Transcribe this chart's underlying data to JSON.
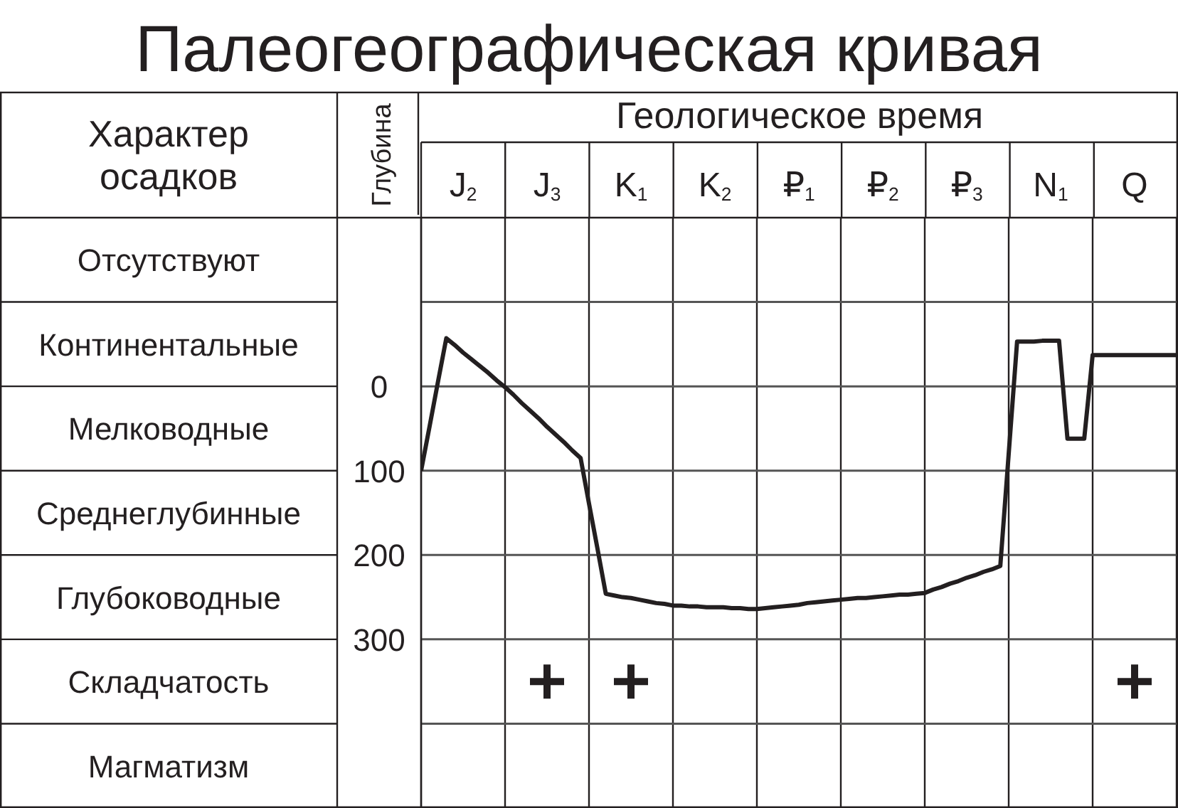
{
  "chart_data": {
    "type": "line",
    "title": "Палеогеографическая кривая",
    "xlabel": "Геологическое время",
    "ylabel": "Глубина",
    "annotations": [
      "Характер осадков",
      "Отсутствуют",
      "Континентальные",
      "Мелководные",
      "Среднеглубинные",
      "Глубоководные",
      "Складчатость",
      "Магматизм"
    ],
    "categories": [
      null,
      null,
      null,
      null,
      null,
      "J$_{2}$",
      null,
      null,
      null,
      null,
      null,
      null,
      null,
      null,
      null,
      "J$_{3}$",
      null,
      null,
      null,
      null,
      null,
      null,
      null,
      null,
      null,
      "K$_{1}$",
      null,
      null,
      null,
      null,
      null,
      null,
      null,
      null,
      null,
      "K$_{2}$",
      null,
      null,
      null,
      null,
      null,
      null,
      null,
      null,
      null,
      "₽$_{1}$",
      null,
      null,
      null,
      null,
      null,
      null,
      null,
      null,
      null,
      "₽$_{2}$",
      null,
      null,
      null,
      null,
      null,
      null,
      null,
      null,
      null,
      "₽$_{3}$",
      null,
      null,
      null,
      null,
      null,
      null,
      null,
      null,
      null,
      "N$_{1}$",
      null,
      null,
      null,
      null,
      null,
      null,
      null,
      null,
      null,
      "Q",
      null,
      null,
      null,
      null,
      null
    ],
    "series": [
      {
        "color": "#231f20",
        "marker": "none",
        "line_style": "solid",
        "values": [
          100,
          48,
          -5,
          -57,
          -49,
          -40,
          -32,
          -24,
          -16,
          -7,
          1,
          10,
          20,
          29,
          38,
          48,
          57,
          66,
          76,
          85,
          139,
          192,
          246,
          248,
          250,
          251,
          253,
          255,
          257,
          258,
          260,
          260,
          261,
          261,
          262,
          262,
          262,
          263,
          263,
          264,
          264,
          263,
          262,
          261,
          260,
          259,
          257,
          256,
          255,
          254,
          253,
          252,
          251,
          251,
          250,
          249,
          248,
          247,
          247,
          246,
          245,
          241,
          238,
          234,
          231,
          227,
          224,
          220,
          217,
          213,
          80,
          -53,
          -53,
          -53,
          -54,
          -54,
          -54,
          62,
          62,
          62,
          -37,
          -37,
          -37,
          -37,
          -37,
          -37,
          -37,
          -37,
          -37,
          -37,
          -37
        ]
      },
      {
        "type": "scatter",
        "color": "#231f20",
        "marker": "cross",
        "values": [
          null,
          null,
          null,
          null,
          null,
          null,
          null,
          null,
          null,
          null,
          null,
          null,
          null,
          null,
          null,
          350,
          null,
          null,
          null,
          null,
          null,
          null,
          null,
          null,
          null,
          350,
          null,
          null,
          null,
          null,
          null,
          null,
          null,
          null,
          null,
          null,
          null,
          null,
          null,
          null,
          null,
          null,
          null,
          null,
          null,
          null,
          null,
          null,
          null,
          null,
          null,
          null,
          null,
          null,
          null,
          null,
          null,
          null,
          null,
          null,
          null,
          null,
          null,
          null,
          null,
          null,
          null,
          null,
          null,
          null,
          null,
          null,
          null,
          null,
          null,
          null,
          null,
          null,
          null,
          null,
          null,
          null,
          null,
          null,
          null,
          350,
          null,
          null,
          null,
          null,
          null
        ]
      }
    ],
    "ylim": [
      500,
      -200
    ],
    "yticks": [
      {
        "value": -100,
        "label": null
      },
      0,
      100,
      200,
      300,
      {
        "value": 400,
        "label": null
      }
    ],
    "grid": "y"
  }
}
